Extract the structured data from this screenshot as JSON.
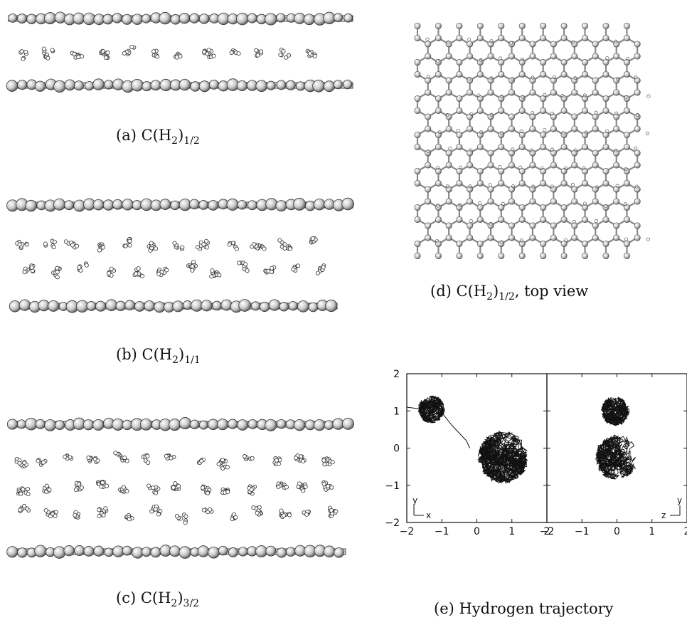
{
  "figure": {
    "panels": [
      {
        "id": "a",
        "prefix": "(a) C(H",
        "sub1": "2",
        "mid": ")",
        "sub2": "1/2",
        "suffix": ""
      },
      {
        "id": "b",
        "prefix": "(b) C(H",
        "sub1": "2",
        "mid": ")",
        "sub2": "1/1",
        "suffix": ""
      },
      {
        "id": "c",
        "prefix": "(c) C(H",
        "sub1": "2",
        "mid": ")",
        "sub2": "3/2",
        "suffix": ""
      },
      {
        "id": "d",
        "prefix": "(d) C(H",
        "sub1": "2",
        "mid": ")",
        "sub2": "1/2",
        "suffix": ", top view"
      },
      {
        "id": "e",
        "prefix": "(e) Hydrogen trajectory",
        "sub1": "",
        "mid": "",
        "sub2": "",
        "suffix": ""
      }
    ]
  },
  "chart_data": [
    {
      "type": "line",
      "panel": "e-left",
      "description_axes": {
        "horizontal": "x",
        "vertical": "y"
      },
      "xlim": [
        -2,
        2
      ],
      "ylim": [
        -2,
        2
      ],
      "x_ticks": [
        "-2",
        "-1",
        "0",
        "1",
        "2"
      ],
      "y_ticks": [
        "-2",
        "-1",
        "0",
        "1",
        "2"
      ],
      "clusters": [
        {
          "cx": -1.3,
          "cy": 1.05,
          "r": 0.38
        },
        {
          "cx": 0.75,
          "cy": -0.25,
          "r": 0.72
        }
      ],
      "axis_indicator": {
        "vertical": "y",
        "horizontal": "x"
      }
    },
    {
      "type": "line",
      "panel": "e-right",
      "description_axes": {
        "horizontal": "z",
        "vertical": "y"
      },
      "xlim": [
        -2,
        2
      ],
      "ylim": [
        -2,
        2
      ],
      "x_ticks": [
        "-2",
        "-1",
        "0",
        "1",
        "2"
      ],
      "clusters": [
        {
          "cx": -0.05,
          "cy": 1.0,
          "r": 0.4
        },
        {
          "cx": 0.0,
          "cy": -0.25,
          "r": 0.62
        }
      ],
      "axis_indicator": {
        "vertical": "y",
        "horizontal": "z"
      }
    }
  ]
}
